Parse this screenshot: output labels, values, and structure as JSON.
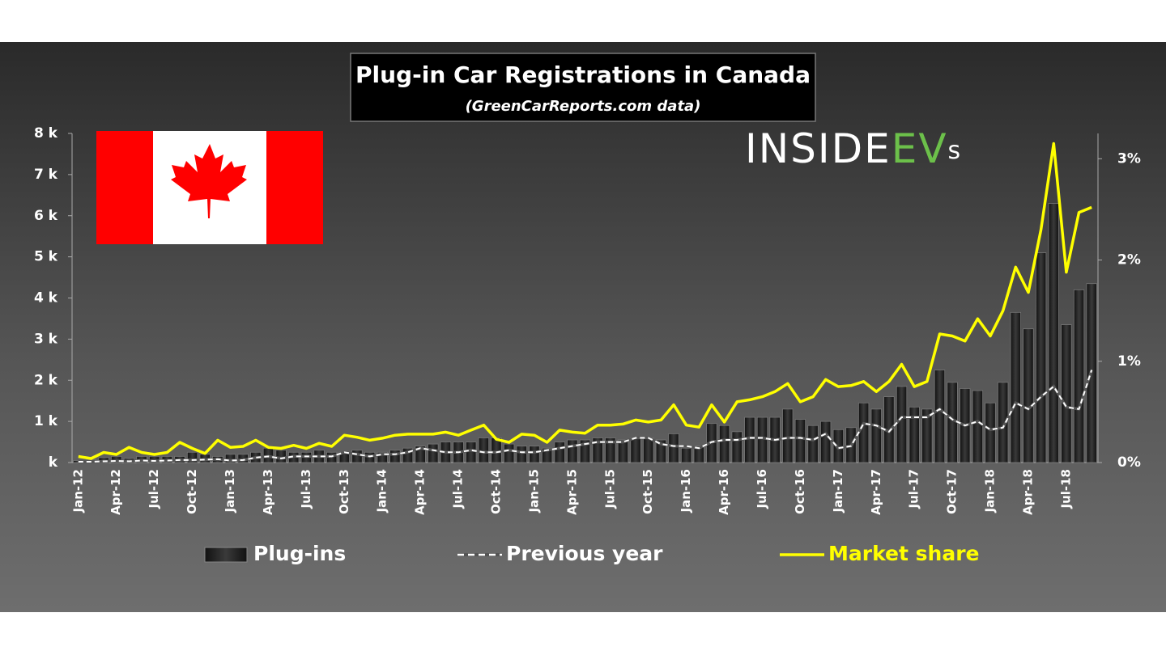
{
  "chart_data": {
    "type": "bar",
    "title": "Plug-in Car Registrations in Canada",
    "subtitle": "(GreenCarReports.com data)",
    "annotations": [
      "INSIDE",
      "EV",
      "s"
    ],
    "categories": [
      "Jan-12",
      null,
      null,
      "Apr-12",
      null,
      null,
      "Jul-12",
      null,
      null,
      "Oct-12",
      null,
      null,
      "Jan-13",
      null,
      null,
      "Apr-13",
      null,
      null,
      "Jul-13",
      null,
      null,
      "Oct-13",
      null,
      null,
      "Jan-14",
      null,
      null,
      "Apr-14",
      null,
      null,
      "Jul-14",
      null,
      null,
      "Oct-14",
      null,
      null,
      "Jan-15",
      null,
      null,
      "Apr-15",
      null,
      null,
      "Jul-15",
      null,
      null,
      "Oct-15",
      null,
      null,
      "Jan-16",
      null,
      null,
      "Apr-16",
      null,
      null,
      "Jul-16",
      null,
      null,
      "Oct-16",
      null,
      null,
      "Jan-17",
      null,
      null,
      "Apr-17",
      null,
      null,
      "Jul-17",
      null,
      null,
      "Oct-17",
      null,
      null,
      "Jan-18",
      null,
      null,
      "Apr-18",
      null,
      null,
      "Jul-18",
      null,
      null
    ],
    "series": [
      {
        "name": "Plug-ins",
        "type": "bar",
        "color": "#1c1c1c",
        "values": [
          50,
          60,
          120,
          150,
          100,
          150,
          150,
          150,
          150,
          250,
          200,
          150,
          200,
          200,
          250,
          350,
          300,
          250,
          250,
          300,
          250,
          250,
          300,
          250,
          250,
          300,
          350,
          400,
          450,
          500,
          500,
          500,
          600,
          600,
          450,
          400,
          400,
          350,
          500,
          550,
          550,
          600,
          600,
          550,
          600,
          600,
          550,
          700,
          350,
          400,
          950,
          900,
          750,
          1100,
          1100,
          1100,
          1300,
          1050,
          900,
          1000,
          800,
          850,
          1450,
          1300,
          1600,
          1850,
          1350,
          1300,
          2250,
          1950,
          1800,
          1750,
          1450,
          1950,
          3650,
          3250,
          5100,
          6300,
          3350,
          4200,
          4350
        ]
      },
      {
        "name": "Previous year",
        "type": "line",
        "dashed": true,
        "color": "#ffffff",
        "values": [
          20,
          20,
          30,
          40,
          30,
          50,
          40,
          50,
          60,
          60,
          70,
          80,
          50,
          60,
          120,
          150,
          100,
          150,
          150,
          150,
          150,
          250,
          200,
          150,
          200,
          200,
          250,
          350,
          300,
          250,
          250,
          300,
          250,
          250,
          300,
          250,
          250,
          300,
          350,
          400,
          450,
          500,
          500,
          500,
          600,
          600,
          450,
          400,
          400,
          350,
          500,
          550,
          550,
          600,
          600,
          550,
          600,
          600,
          550,
          700,
          350,
          400,
          950,
          900,
          750,
          1100,
          1100,
          1100,
          1300,
          1050,
          900,
          1000,
          800,
          850,
          1450,
          1300,
          1600,
          1850,
          1350,
          1300,
          2250
        ]
      },
      {
        "name": "Market share",
        "type": "line",
        "axis": "y2",
        "color": "#ffff00",
        "values": [
          0.06,
          0.04,
          0.1,
          0.08,
          0.15,
          0.1,
          0.08,
          0.1,
          0.2,
          0.14,
          0.09,
          0.22,
          0.15,
          0.16,
          0.22,
          0.15,
          0.14,
          0.17,
          0.14,
          0.19,
          0.16,
          0.27,
          0.25,
          0.22,
          0.24,
          0.27,
          0.28,
          0.28,
          0.28,
          0.3,
          0.27,
          0.32,
          0.37,
          0.23,
          0.2,
          0.28,
          0.27,
          0.2,
          0.32,
          0.3,
          0.29,
          0.37,
          0.37,
          0.38,
          0.42,
          0.4,
          0.42,
          0.57,
          0.37,
          0.35,
          0.57,
          0.4,
          0.6,
          0.62,
          0.65,
          0.7,
          0.78,
          0.6,
          0.65,
          0.82,
          0.75,
          0.76,
          0.8,
          0.7,
          0.8,
          0.97,
          0.75,
          0.8,
          1.27,
          1.25,
          1.2,
          1.42,
          1.25,
          1.5,
          1.93,
          1.68,
          2.3,
          3.15,
          1.88,
          2.47,
          2.52
        ]
      }
    ],
    "ylim": [
      0,
      8000
    ],
    "yticks": [
      {
        "value": 0,
        "label": "k"
      },
      {
        "value": 1000,
        "label": "1 k"
      },
      {
        "value": 2000,
        "label": "2 k"
      },
      {
        "value": 3000,
        "label": "3 k"
      },
      {
        "value": 4000,
        "label": "4 k"
      },
      {
        "value": 5000,
        "label": "5 k"
      },
      {
        "value": 6000,
        "label": "6 k"
      },
      {
        "value": 7000,
        "label": "7 k"
      },
      {
        "value": 8000,
        "label": "8 k"
      }
    ],
    "y2lim": [
      0,
      3.25
    ],
    "y2ticks": [
      {
        "value": 0,
        "label": "0%"
      },
      {
        "value": 1,
        "label": "1%"
      },
      {
        "value": 2,
        "label": "2%"
      },
      {
        "value": 3,
        "label": "3%"
      }
    ],
    "grid": false
  }
}
